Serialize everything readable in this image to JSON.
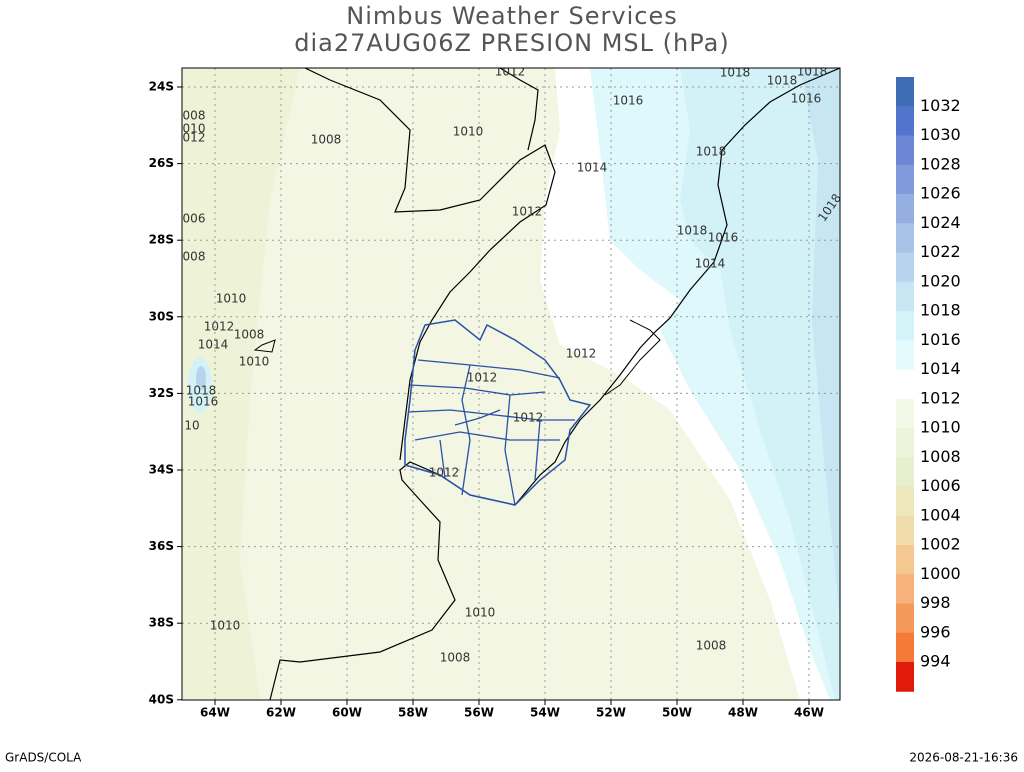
{
  "header": {
    "title": "Nimbus Weather Services",
    "subtitle": "dia27AUG06Z PRESION MSL (hPa)"
  },
  "map": {
    "lat_ticks": [
      "24S",
      "26S",
      "28S",
      "30S",
      "32S",
      "34S",
      "36S",
      "38S",
      "40S"
    ],
    "lon_ticks": [
      "64W",
      "62W",
      "60W",
      "58W",
      "56W",
      "54W",
      "52W",
      "50W",
      "48W",
      "46W"
    ],
    "contour_labels": [
      "1012",
      "1018",
      "1018",
      "1018",
      "1016",
      "1016",
      "1010",
      "1008",
      "008",
      "010",
      "012",
      "1014",
      "1018",
      "1012",
      "006",
      "1018",
      "1016",
      "1014",
      "008",
      "1010",
      "1012",
      "1008",
      "1014",
      "1010",
      "1012",
      "1012",
      "1018",
      "1016",
      "1012",
      "10",
      "1012",
      "1010",
      "1010",
      "1008",
      "1008",
      "1018"
    ]
  },
  "colorbar": {
    "labels": [
      1032,
      1030,
      1028,
      1026,
      1024,
      1022,
      1020,
      1018,
      1016,
      1014,
      1012,
      1010,
      1008,
      1006,
      1004,
      1002,
      1000,
      998,
      996,
      994
    ],
    "colors": [
      "#3d6db5",
      "#5374cc",
      "#6b87d6",
      "#809adc",
      "#95afe2",
      "#a7c3e7",
      "#b6d4ed",
      "#c6e6f3",
      "#d4f3f9",
      "#e3fbfd",
      "#ffffff",
      "#f4f8e6",
      "#eef3dc",
      "#e8eed0",
      "#ece8bc",
      "#f1dcae",
      "#f4c890",
      "#f6b27a",
      "#f5995a",
      "#f47a3a",
      "#e01b0a"
    ]
  },
  "footer": {
    "left": "GrADS/COLA",
    "right": "2026-08-21-16:36"
  }
}
